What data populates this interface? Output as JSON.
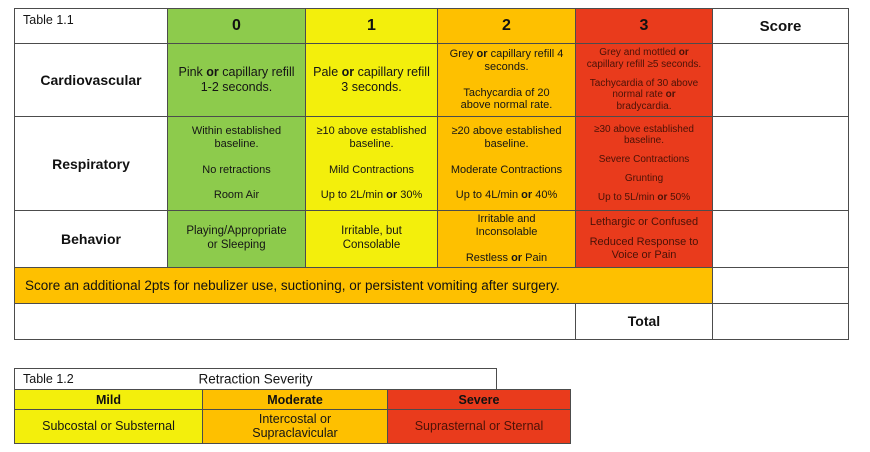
{
  "colors": {
    "green": "#8DCB4C",
    "yellow": "#F3EF0C",
    "orange": "#FEC000",
    "red": "#E93B1C",
    "border": "#4c4c4c"
  },
  "table_1_1": {
    "title": "Table 1.1",
    "column_headers": [
      "0",
      "1",
      "2",
      "3"
    ],
    "score_header": "Score",
    "rows": [
      {
        "label": "Cardiovascular",
        "cells": [
          [
            "Pink **or** capillary refill\n1-2 seconds."
          ],
          [
            "Pale **or** capillary refill\n3 seconds."
          ],
          [
            "Grey **or** capillary refill 4\nseconds.",
            "Tachycardia of 20\nabove normal rate."
          ],
          [
            "Grey and mottled **or**\ncapillary refill ≥5 seconds.",
            "Tachycardia of 30 above\nnormal rate **or**\nbradycardia."
          ]
        ]
      },
      {
        "label": "Respiratory",
        "cells": [
          [
            "Within established\nbaseline.",
            "No retractions",
            "Room Air"
          ],
          [
            "≥10 above established\nbaseline.",
            "Mild Contractions",
            "Up to 2L/min **or** 30%"
          ],
          [
            "≥20 above established\nbaseline.",
            "Moderate Contractions",
            "Up to 4L/min **or** 40%"
          ],
          [
            "≥30 above established\nbaseline.",
            "Severe Contractions",
            "Grunting",
            "Up to 5L/min **or** 50%"
          ]
        ]
      },
      {
        "label": "Behavior",
        "cells": [
          [
            "Playing/Appropriate\nor Sleeping"
          ],
          [
            "Irritable, but\nConsolable"
          ],
          [
            "Irritable and\nInconsolable",
            "Restless **or** Pain"
          ],
          [
            "Lethargic or Confused",
            "Reduced Response to\nVoice or Pain"
          ]
        ]
      }
    ],
    "note": "Score an additional 2pts for nebulizer use, suctioning, or persistent vomiting after surgery.",
    "total_label": "Total"
  },
  "table_1_2": {
    "title": "Table 1.2",
    "heading": "Retraction Severity",
    "columns": [
      {
        "label": "Mild",
        "value": "Subcostal or Substernal"
      },
      {
        "label": "Moderate",
        "value": "Intercostal or\nSupraclavicular"
      },
      {
        "label": "Severe",
        "value": "Suprasternal or Sternal"
      }
    ]
  }
}
